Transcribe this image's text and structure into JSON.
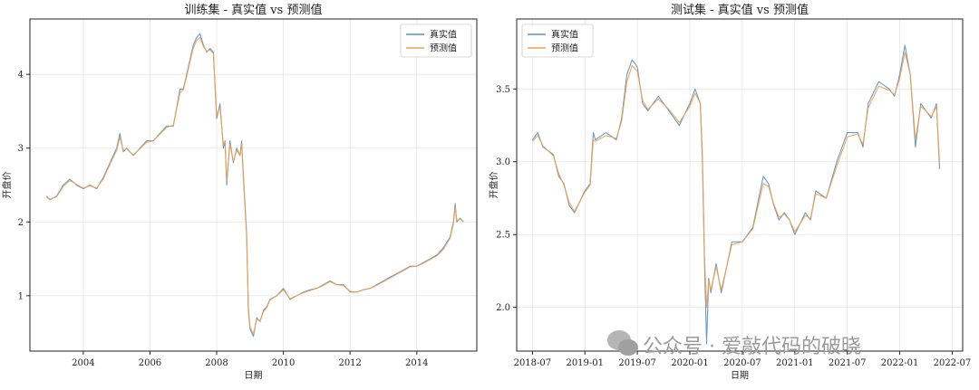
{
  "watermark": "公众号 · 爱敲代码的破晓",
  "colors": {
    "actual": "#5b8fc4",
    "predicted": "#f0a04b",
    "grid": "#e6e6e6",
    "axis": "#222222"
  },
  "chart_data": [
    {
      "type": "line",
      "title": "训练集 - 真实值 vs 预测值",
      "xlabel": "日期",
      "ylabel": "开盘价",
      "xlim": [
        2002.4,
        2015.8
      ],
      "ylim": [
        0.25,
        4.75
      ],
      "xticks": [
        2004,
        2006,
        2008,
        2010,
        2012,
        2014
      ],
      "xtick_labels": [
        "2004",
        "2006",
        "2008",
        "2010",
        "2012",
        "2014"
      ],
      "yticks": [
        1,
        2,
        3,
        4
      ],
      "ytick_labels": [
        "1",
        "2",
        "3",
        "4"
      ],
      "grid": true,
      "legend_position": "top-right",
      "series": [
        {
          "name": "真实值",
          "x": [
            2002.9,
            2003.0,
            2003.2,
            2003.4,
            2003.6,
            2003.8,
            2004.0,
            2004.2,
            2004.4,
            2004.6,
            2004.8,
            2005.0,
            2005.1,
            2005.2,
            2005.3,
            2005.5,
            2005.7,
            2005.9,
            2006.1,
            2006.3,
            2006.5,
            2006.7,
            2006.9,
            2007.0,
            2007.1,
            2007.2,
            2007.3,
            2007.4,
            2007.5,
            2007.6,
            2007.7,
            2007.8,
            2007.9,
            2008.0,
            2008.1,
            2008.2,
            2008.25,
            2008.3,
            2008.4,
            2008.5,
            2008.6,
            2008.7,
            2008.75,
            2008.8,
            2008.9,
            2008.95,
            2009.0,
            2009.1,
            2009.2,
            2009.3,
            2009.4,
            2009.5,
            2009.6,
            2009.8,
            2010.0,
            2010.2,
            2010.4,
            2010.6,
            2010.8,
            2011.0,
            2011.2,
            2011.4,
            2011.6,
            2011.8,
            2012.0,
            2012.2,
            2012.4,
            2012.6,
            2012.8,
            2013.0,
            2013.2,
            2013.4,
            2013.6,
            2013.8,
            2014.0,
            2014.2,
            2014.4,
            2014.6,
            2014.8,
            2015.0,
            2015.1,
            2015.15,
            2015.2,
            2015.3,
            2015.4
          ],
          "values": [
            2.35,
            2.3,
            2.35,
            2.5,
            2.58,
            2.5,
            2.45,
            2.5,
            2.45,
            2.6,
            2.8,
            3.0,
            3.2,
            2.95,
            3.0,
            2.9,
            3.0,
            3.1,
            3.1,
            3.2,
            3.3,
            3.3,
            3.8,
            3.8,
            4.0,
            4.2,
            4.4,
            4.5,
            4.55,
            4.4,
            4.3,
            4.35,
            4.3,
            3.4,
            3.6,
            3.0,
            3.1,
            2.5,
            3.1,
            2.8,
            3.0,
            2.9,
            3.1,
            2.6,
            1.8,
            0.8,
            0.55,
            0.45,
            0.7,
            0.65,
            0.8,
            0.85,
            0.95,
            1.0,
            1.1,
            0.95,
            1.0,
            1.05,
            1.08,
            1.1,
            1.15,
            1.2,
            1.15,
            1.15,
            1.05,
            1.05,
            1.08,
            1.1,
            1.15,
            1.2,
            1.25,
            1.3,
            1.35,
            1.4,
            1.4,
            1.45,
            1.5,
            1.55,
            1.65,
            1.8,
            2.0,
            2.25,
            2.0,
            2.05,
            2.0
          ]
        },
        {
          "name": "预测值",
          "x": [
            2002.9,
            2003.0,
            2003.2,
            2003.4,
            2003.6,
            2003.8,
            2004.0,
            2004.2,
            2004.4,
            2004.6,
            2004.8,
            2005.0,
            2005.1,
            2005.2,
            2005.3,
            2005.5,
            2005.7,
            2005.9,
            2006.1,
            2006.3,
            2006.5,
            2006.7,
            2006.9,
            2007.0,
            2007.1,
            2007.2,
            2007.3,
            2007.4,
            2007.5,
            2007.6,
            2007.7,
            2007.8,
            2007.9,
            2008.0,
            2008.1,
            2008.2,
            2008.25,
            2008.3,
            2008.4,
            2008.5,
            2008.6,
            2008.7,
            2008.75,
            2008.8,
            2008.9,
            2008.95,
            2009.0,
            2009.1,
            2009.2,
            2009.3,
            2009.4,
            2009.5,
            2009.6,
            2009.8,
            2010.0,
            2010.2,
            2010.4,
            2010.6,
            2010.8,
            2011.0,
            2011.2,
            2011.4,
            2011.6,
            2011.8,
            2012.0,
            2012.2,
            2012.4,
            2012.6,
            2012.8,
            2013.0,
            2013.2,
            2013.4,
            2013.6,
            2013.8,
            2014.0,
            2014.2,
            2014.4,
            2014.6,
            2014.8,
            2015.0,
            2015.1,
            2015.15,
            2015.2,
            2015.3,
            2015.4
          ],
          "values": [
            2.33,
            2.31,
            2.34,
            2.48,
            2.56,
            2.51,
            2.46,
            2.49,
            2.46,
            2.58,
            2.78,
            2.97,
            3.15,
            2.97,
            2.99,
            2.91,
            2.99,
            3.08,
            3.1,
            3.19,
            3.28,
            3.31,
            3.75,
            3.79,
            3.97,
            4.17,
            4.36,
            4.46,
            4.5,
            4.38,
            4.31,
            4.33,
            4.28,
            3.45,
            3.55,
            3.05,
            3.08,
            2.55,
            3.05,
            2.82,
            2.97,
            2.9,
            3.05,
            2.65,
            1.85,
            0.85,
            0.58,
            0.48,
            0.68,
            0.66,
            0.78,
            0.84,
            0.94,
            1.0,
            1.08,
            0.96,
            1.0,
            1.04,
            1.07,
            1.1,
            1.14,
            1.19,
            1.15,
            1.14,
            1.06,
            1.05,
            1.08,
            1.1,
            1.14,
            1.19,
            1.24,
            1.29,
            1.34,
            1.39,
            1.4,
            1.44,
            1.49,
            1.54,
            1.63,
            1.78,
            1.97,
            2.2,
            2.02,
            2.04,
            2.01
          ]
        }
      ]
    },
    {
      "type": "line",
      "title": "测试集 - 真实值 vs 预测值",
      "xlabel": "日期",
      "ylabel": "开盘价",
      "xlim": [
        2018.35,
        2022.6
      ],
      "ylim": [
        1.7,
        3.98
      ],
      "xticks": [
        2018.5,
        2019.0,
        2019.5,
        2020.0,
        2020.5,
        2021.0,
        2021.5,
        2022.0,
        2022.5
      ],
      "xtick_labels": [
        "2018-07",
        "2019-01",
        "2019-07",
        "2020-01",
        "2020-07",
        "2021-01",
        "2021-07",
        "2022-01",
        "2022-07"
      ],
      "yticks": [
        2.0,
        2.5,
        3.0,
        3.5
      ],
      "ytick_labels": [
        "2.0",
        "2.5",
        "3.0",
        "3.5"
      ],
      "grid": true,
      "legend_position": "top-left",
      "series": [
        {
          "name": "真实值",
          "x": [
            2018.5,
            2018.55,
            2018.6,
            2018.7,
            2018.75,
            2018.8,
            2018.85,
            2018.9,
            2019.0,
            2019.05,
            2019.08,
            2019.1,
            2019.2,
            2019.3,
            2019.35,
            2019.4,
            2019.45,
            2019.5,
            2019.55,
            2019.6,
            2019.7,
            2019.8,
            2019.9,
            2020.0,
            2020.05,
            2020.1,
            2020.12,
            2020.14,
            2020.16,
            2020.18,
            2020.2,
            2020.25,
            2020.3,
            2020.4,
            2020.5,
            2020.6,
            2020.7,
            2020.75,
            2020.8,
            2020.85,
            2020.9,
            2020.95,
            2021.0,
            2021.1,
            2021.15,
            2021.2,
            2021.3,
            2021.4,
            2021.5,
            2021.6,
            2021.65,
            2021.7,
            2021.8,
            2021.9,
            2021.95,
            2022.0,
            2022.05,
            2022.1,
            2022.15,
            2022.2,
            2022.25,
            2022.3,
            2022.35,
            2022.38
          ],
          "values": [
            3.15,
            3.2,
            3.1,
            3.05,
            2.9,
            2.85,
            2.7,
            2.65,
            2.8,
            2.85,
            3.2,
            3.15,
            3.2,
            3.15,
            3.3,
            3.6,
            3.7,
            3.65,
            3.4,
            3.35,
            3.45,
            3.35,
            3.25,
            3.4,
            3.5,
            3.4,
            3.0,
            2.3,
            1.75,
            2.2,
            2.1,
            2.3,
            2.1,
            2.45,
            2.45,
            2.55,
            2.9,
            2.85,
            2.7,
            2.6,
            2.65,
            2.6,
            2.5,
            2.65,
            2.6,
            2.8,
            2.75,
            3.0,
            3.2,
            3.2,
            3.1,
            3.4,
            3.55,
            3.5,
            3.45,
            3.6,
            3.8,
            3.6,
            3.1,
            3.4,
            3.35,
            3.3,
            3.4,
            2.95
          ]
        },
        {
          "name": "预测值",
          "x": [
            2018.5,
            2018.55,
            2018.6,
            2018.7,
            2018.75,
            2018.8,
            2018.85,
            2018.9,
            2019.0,
            2019.05,
            2019.08,
            2019.1,
            2019.2,
            2019.3,
            2019.35,
            2019.4,
            2019.45,
            2019.5,
            2019.55,
            2019.6,
            2019.7,
            2019.8,
            2019.9,
            2020.0,
            2020.05,
            2020.1,
            2020.12,
            2020.14,
            2020.16,
            2020.18,
            2020.2,
            2020.25,
            2020.3,
            2020.4,
            2020.5,
            2020.6,
            2020.7,
            2020.75,
            2020.8,
            2020.85,
            2020.9,
            2020.95,
            2021.0,
            2021.1,
            2021.15,
            2021.2,
            2021.3,
            2021.4,
            2021.5,
            2021.6,
            2021.65,
            2021.7,
            2021.8,
            2021.9,
            2021.95,
            2022.0,
            2022.05,
            2022.1,
            2022.15,
            2022.2,
            2022.25,
            2022.3,
            2022.35,
            2022.38
          ],
          "values": [
            3.14,
            3.18,
            3.11,
            3.04,
            2.92,
            2.84,
            2.72,
            2.66,
            2.79,
            2.84,
            3.15,
            3.14,
            3.18,
            3.16,
            3.28,
            3.55,
            3.66,
            3.62,
            3.42,
            3.36,
            3.43,
            3.36,
            3.27,
            3.38,
            3.47,
            3.4,
            3.05,
            2.35,
            2.0,
            2.18,
            2.12,
            2.28,
            2.12,
            2.43,
            2.45,
            2.54,
            2.85,
            2.83,
            2.71,
            2.62,
            2.64,
            2.6,
            2.52,
            2.63,
            2.61,
            2.78,
            2.75,
            2.97,
            3.17,
            3.19,
            3.12,
            3.37,
            3.52,
            3.49,
            3.46,
            3.57,
            3.75,
            3.6,
            3.15,
            3.38,
            3.35,
            3.31,
            3.38,
            3.0
          ]
        }
      ]
    }
  ]
}
